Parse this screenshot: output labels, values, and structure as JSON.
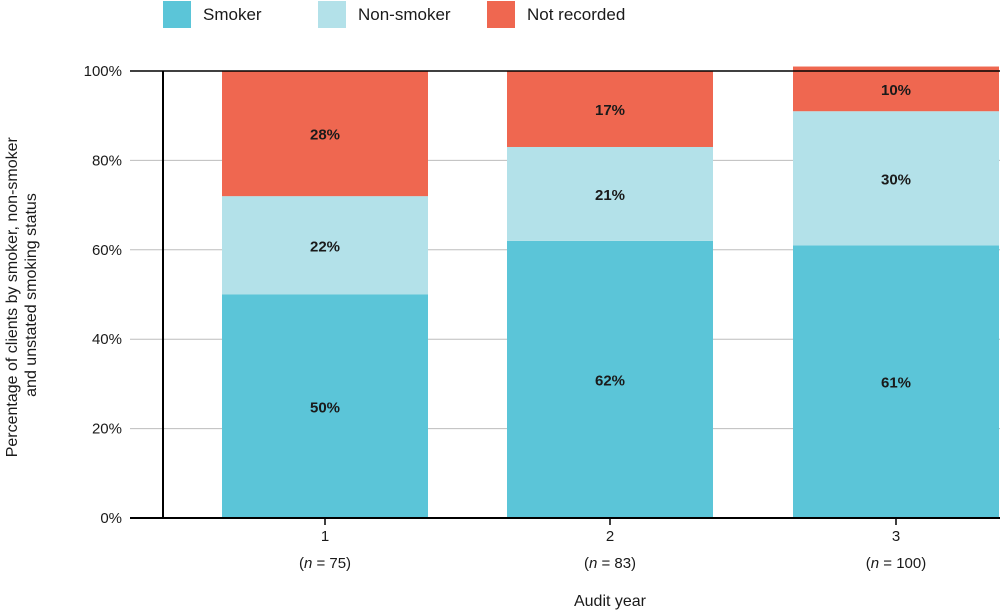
{
  "chart_data": {
    "type": "bar",
    "stacked": true,
    "categories": [
      "1",
      "2",
      "3"
    ],
    "category_notes": [
      {
        "italic": "n",
        "rest": " = 75"
      },
      {
        "italic": "n",
        "rest": " = 83"
      },
      {
        "italic": "n",
        "rest": " = 100"
      }
    ],
    "series": [
      {
        "name": "Smoker",
        "color": "#5bc5d8",
        "values": [
          50,
          62,
          61
        ]
      },
      {
        "name": "Non-smoker",
        "color": "#b3e1e9",
        "values": [
          22,
          21,
          30
        ]
      },
      {
        "name": "Not recorded",
        "color": "#ef6750",
        "values": [
          28,
          17,
          10
        ]
      }
    ],
    "value_labels": [
      [
        "50%",
        "62%",
        "61%"
      ],
      [
        "22%",
        "21%",
        "30%"
      ],
      [
        "28%",
        "17%",
        "10%"
      ]
    ],
    "xlabel": "Audit year",
    "ylabel_lines": [
      "Percentage of clients by smoker, non-smoker",
      "and unstated smoking status"
    ],
    "ylim": [
      0,
      100
    ],
    "yticks": [
      0,
      20,
      40,
      60,
      80,
      100
    ],
    "ytick_labels": [
      "0%",
      "20%",
      "40%",
      "60%",
      "80%",
      "100%"
    ],
    "grid": true,
    "legend_position": "top"
  }
}
